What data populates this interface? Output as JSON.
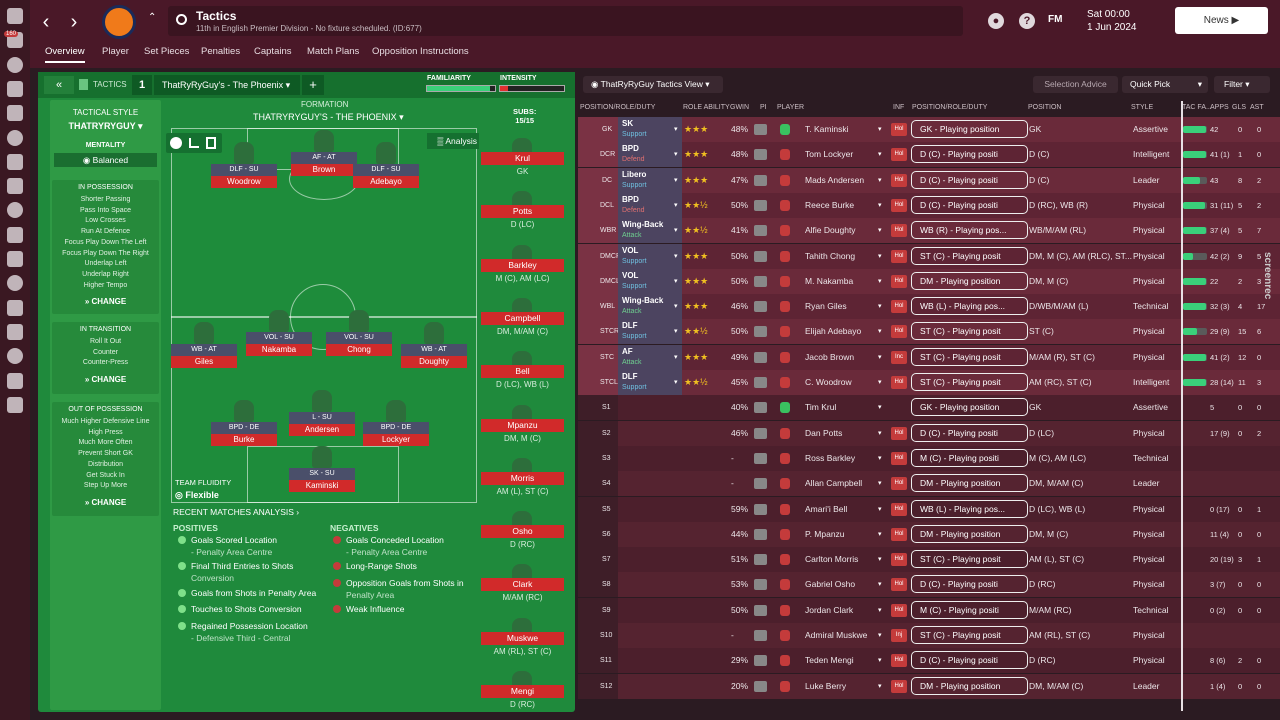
{
  "header": {
    "title": "Tactics",
    "subtitle": "11th in English Premier Division - No fixture scheduled. (ID:677)",
    "fm_label": "FM",
    "date_line1": "Sat 00:00",
    "date_line2": "1 Jun 2024",
    "news_label": "News",
    "tabs": [
      "Overview",
      "Player",
      "Set Pieces",
      "Penalties",
      "Captains",
      "Match Plans",
      "Opposition Instructions"
    ],
    "rail_badge": "160"
  },
  "tactics_bar": {
    "label": "TACTICS",
    "slot": "1",
    "tactic_name": "ThatRyRyGuy's - The Phoenix",
    "familiarity": "FAMILIARITY",
    "intensity": "INTENSITY",
    "familiarity_fill": 0.92,
    "intensity_fill": 0.12
  },
  "style_panel": {
    "header": "TACTICAL STYLE",
    "name": "THATRYRYGUY",
    "mentality_label": "MENTALITY",
    "mentality": "Balanced",
    "in_possession": {
      "title": "IN POSSESSION",
      "items": [
        "Shorter Passing",
        "Pass Into Space",
        "Low Crosses",
        "Run At Defence",
        "Focus Play Down The Left",
        "Focus Play Down The Right",
        "Underlap Left",
        "Underlap Right",
        "Higher Tempo"
      ]
    },
    "in_transition": {
      "title": "IN TRANSITION",
      "items": [
        "Roll It Out",
        "Counter",
        "Counter-Press"
      ]
    },
    "out_of_possession": {
      "title": "OUT OF POSSESSION",
      "items": [
        "Much Higher Defensive Line",
        "High Press",
        "Much More Often",
        "Prevent Short GK",
        "Distribution",
        "Get Stuck In",
        "Step Up More"
      ]
    },
    "change_label": "CHANGE",
    "team_fluidity_label": "TEAM FLUIDITY",
    "team_fluidity": "Flexible"
  },
  "formation": {
    "label": "FORMATION",
    "name": "THATRYRYGUY'S - THE PHOENIX",
    "analysis_label": "Analysis",
    "subs_label": "SUBS:",
    "subs_count": "15/15"
  },
  "pitch_players": [
    {
      "role": "DLF - SU",
      "name": "Woodrow"
    },
    {
      "role": "AF - AT",
      "name": "Brown"
    },
    {
      "role": "DLF - SU",
      "name": "Adebayo"
    },
    {
      "role": "WB - AT",
      "name": "Giles"
    },
    {
      "role": "VOL - SU",
      "name": "Nakamba"
    },
    {
      "role": "VOL - SU",
      "name": "Chong"
    },
    {
      "role": "WB - AT",
      "name": "Doughty"
    },
    {
      "role": "BPD - DE",
      "name": "Burke"
    },
    {
      "role": "L - SU",
      "name": "Andersen"
    },
    {
      "role": "BPD - DE",
      "name": "Lockyer"
    },
    {
      "role": "SK - SU",
      "name": "Kaminski"
    }
  ],
  "subs": [
    {
      "name": "Krul",
      "pos": "GK"
    },
    {
      "name": "Potts",
      "pos": "D (LC)"
    },
    {
      "name": "Barkley",
      "pos": "M (C), AM (LC)"
    },
    {
      "name": "Campbell",
      "pos": "DM, M/AM (C)"
    },
    {
      "name": "Bell",
      "pos": "D (LC), WB (L)"
    },
    {
      "name": "Mpanzu",
      "pos": "DM, M (C)"
    },
    {
      "name": "Morris",
      "pos": "AM (L), ST (C)"
    },
    {
      "name": "Osho",
      "pos": "D (RC)"
    },
    {
      "name": "Clark",
      "pos": "M/AM (RC)"
    },
    {
      "name": "Muskwe",
      "pos": "AM (RL), ST (C)"
    },
    {
      "name": "Mengi",
      "pos": "D (RC)"
    }
  ],
  "analysis": {
    "title": "RECENT MATCHES ANALYSIS",
    "positives_label": "POSITIVES",
    "negatives_label": "NEGATIVES",
    "positives": [
      {
        "text": "Goals Scored Location",
        "sub": "- Penalty Area Centre"
      },
      {
        "text": "Final Third Entries to Shots",
        "sub": "Conversion"
      },
      {
        "text": "Goals from Shots in Penalty Area",
        "sub": ""
      },
      {
        "text": "Touches to Shots Conversion",
        "sub": ""
      },
      {
        "text": "Regained Possession Location",
        "sub": "- Defensive Third - Central"
      }
    ],
    "negatives": [
      {
        "text": "Goals Conceded Location",
        "sub": "- Penalty Area Centre"
      },
      {
        "text": "Long-Range Shots",
        "sub": ""
      },
      {
        "text": "Opposition Goals from Shots in",
        "sub": "Penalty Area"
      },
      {
        "text": "Weak Influence",
        "sub": ""
      }
    ]
  },
  "right": {
    "view_label": "ThatRyRyGuy Tactics View",
    "selection_advice": "Selection Advice",
    "quick_pick": "Quick Pick",
    "filter": "Filter",
    "columns": [
      "POSITION/ROLE/DUTY",
      "ROLE ABILITY",
      "GWIN",
      "PI",
      "PLAYER",
      "INF",
      "POSITION/ROLE/DUTY",
      "POSITION",
      "STYLE",
      "TAC FA...",
      "APPS",
      "GLS",
      "AST"
    ],
    "rows": [
      {
        "pos": "GK",
        "role": "SK",
        "duty": "Support",
        "stars": 3,
        "gwin": "48%",
        "player": "T. Kaminski",
        "inf": "Hol",
        "ddl": "GK - Playing position",
        "position": "GK",
        "style": "Assertive",
        "tac": 0.95,
        "apps": "42",
        "gls": "0",
        "ast": "0"
      },
      {
        "pos": "DCR",
        "role": "BPD",
        "duty": "Defend",
        "stars": 3,
        "gwin": "48%",
        "player": "Tom Lockyer",
        "inf": "Hol",
        "ddl": "D (C) - Playing positi",
        "position": "D (C)",
        "style": "Intelligent",
        "tac": 0.95,
        "apps": "41 (1)",
        "gls": "1",
        "ast": "0"
      },
      {
        "pos": "DC",
        "role": "Libero",
        "duty": "Support",
        "stars": 3,
        "gwin": "47%",
        "player": "Mads Andersen",
        "inf": "Hol",
        "ddl": "D (C) - Playing positi",
        "position": "D (C)",
        "style": "Leader",
        "tac": 0.7,
        "apps": "43",
        "gls": "8",
        "ast": "2"
      },
      {
        "pos": "DCL",
        "role": "BPD",
        "duty": "Defend",
        "stars": 2.5,
        "gwin": "50%",
        "player": "Reece Burke",
        "inf": "Hol",
        "ddl": "D (C) - Playing positi",
        "position": "D (RC), WB (R)",
        "style": "Physical",
        "tac": 0.9,
        "apps": "31 (11)",
        "gls": "5",
        "ast": "2"
      },
      {
        "pos": "WBR",
        "role": "Wing-Back",
        "duty": "Attack",
        "stars": 2.5,
        "gwin": "41%",
        "player": "Alfie Doughty",
        "inf": "Hol",
        "ddl": "WB (R) - Playing pos...",
        "position": "WB/M/AM (RL)",
        "style": "Physical",
        "tac": 0.95,
        "apps": "37 (4)",
        "gls": "5",
        "ast": "7"
      },
      {
        "pos": "DMCR",
        "role": "VOL",
        "duty": "Support",
        "stars": 3,
        "gwin": "50%",
        "player": "Tahith Chong",
        "inf": "Hol",
        "ddl": "ST (C) - Playing posit",
        "position": "DM, M (C), AM (RLC), ST...",
        "style": "Physical",
        "tac": 0.4,
        "apps": "42 (2)",
        "gls": "9",
        "ast": "5"
      },
      {
        "pos": "DMCL",
        "role": "VOL",
        "duty": "Support",
        "stars": 3,
        "gwin": "50%",
        "player": "M. Nakamba",
        "inf": "Hol",
        "ddl": "DM - Playing position",
        "position": "DM, M (C)",
        "style": "Physical",
        "tac": 0.95,
        "apps": "22",
        "gls": "2",
        "ast": "3"
      },
      {
        "pos": "WBL",
        "role": "Wing-Back",
        "duty": "Attack",
        "stars": 3,
        "gwin": "46%",
        "player": "Ryan Giles",
        "inf": "Hol",
        "ddl": "WB (L) - Playing pos...",
        "position": "D/WB/M/AM (L)",
        "style": "Technical",
        "tac": 0.95,
        "apps": "32 (3)",
        "gls": "4",
        "ast": "17"
      },
      {
        "pos": "STCR",
        "role": "DLF",
        "duty": "Support",
        "stars": 2.5,
        "gwin": "50%",
        "player": "Elijah Adebayo",
        "inf": "Hol",
        "ddl": "ST (C) - Playing posit",
        "position": "ST (C)",
        "style": "Physical",
        "tac": 0.6,
        "apps": "29 (9)",
        "gls": "15",
        "ast": "6"
      },
      {
        "pos": "STC",
        "role": "AF",
        "duty": "Attack",
        "stars": 3,
        "gwin": "49%",
        "player": "Jacob Brown",
        "inf": "Inc",
        "ddl": "ST (C) - Playing posit",
        "position": "M/AM (R), ST (C)",
        "style": "Physical",
        "tac": 0.95,
        "apps": "41 (2)",
        "gls": "12",
        "ast": "0"
      },
      {
        "pos": "STCL",
        "role": "DLF",
        "duty": "Support",
        "stars": 2.5,
        "gwin": "45%",
        "player": "C. Woodrow",
        "inf": "Hol",
        "ddl": "ST (C) - Playing posit",
        "position": "AM (RC), ST (C)",
        "style": "Intelligent",
        "tac": 0.95,
        "apps": "28 (14)",
        "gls": "11",
        "ast": "3"
      },
      {
        "pos": "S1",
        "role": "",
        "duty": "",
        "stars": 0,
        "gwin": "40%",
        "player": "Tim Krul",
        "inf": "",
        "ddl": "GK - Playing position",
        "position": "GK",
        "style": "Assertive",
        "tac": 0,
        "apps": "5",
        "gls": "0",
        "ast": "0"
      },
      {
        "pos": "S2",
        "role": "",
        "duty": "",
        "stars": 0,
        "gwin": "46%",
        "player": "Dan Potts",
        "inf": "Hol",
        "ddl": "D (C) - Playing positi",
        "position": "D (LC)",
        "style": "Physical",
        "tac": 0,
        "apps": "17 (9)",
        "gls": "0",
        "ast": "2"
      },
      {
        "pos": "S3",
        "role": "",
        "duty": "",
        "stars": 0,
        "gwin": "-",
        "player": "Ross Barkley",
        "inf": "Hol",
        "ddl": "M (C) - Playing positi",
        "position": "M (C), AM (LC)",
        "style": "Technical",
        "tac": 0,
        "apps": "",
        "gls": "",
        "ast": ""
      },
      {
        "pos": "S4",
        "role": "",
        "duty": "",
        "stars": 0,
        "gwin": "-",
        "player": "Allan Campbell",
        "inf": "Hol",
        "ddl": "DM - Playing position",
        "position": "DM, M/AM (C)",
        "style": "Leader",
        "tac": 0,
        "apps": "",
        "gls": "",
        "ast": ""
      },
      {
        "pos": "S5",
        "role": "",
        "duty": "",
        "stars": 0,
        "gwin": "59%",
        "player": "Amari'i Bell",
        "inf": "Hol",
        "ddl": "WB (L) - Playing pos...",
        "position": "D (LC), WB (L)",
        "style": "Physical",
        "tac": 0,
        "apps": "0 (17)",
        "gls": "0",
        "ast": "1"
      },
      {
        "pos": "S6",
        "role": "",
        "duty": "",
        "stars": 0,
        "gwin": "44%",
        "player": "P. Mpanzu",
        "inf": "Hol",
        "ddl": "DM - Playing position",
        "position": "DM, M (C)",
        "style": "Physical",
        "tac": 0,
        "apps": "11 (4)",
        "gls": "0",
        "ast": "0"
      },
      {
        "pos": "S7",
        "role": "",
        "duty": "",
        "stars": 0,
        "gwin": "51%",
        "player": "Carlton Morris",
        "inf": "Hol",
        "ddl": "ST (C) - Playing posit",
        "position": "AM (L), ST (C)",
        "style": "Physical",
        "tac": 0,
        "apps": "20 (19)",
        "gls": "3",
        "ast": "1"
      },
      {
        "pos": "S8",
        "role": "",
        "duty": "",
        "stars": 0,
        "gwin": "53%",
        "player": "Gabriel Osho",
        "inf": "Hol",
        "ddl": "D (C) - Playing positi",
        "position": "D (RC)",
        "style": "Physical",
        "tac": 0,
        "apps": "3 (7)",
        "gls": "0",
        "ast": "0"
      },
      {
        "pos": "S9",
        "role": "",
        "duty": "",
        "stars": 0,
        "gwin": "50%",
        "player": "Jordan Clark",
        "inf": "Hol",
        "ddl": "M (C) - Playing positi",
        "position": "M/AM (RC)",
        "style": "Technical",
        "tac": 0,
        "apps": "0 (2)",
        "gls": "0",
        "ast": "0"
      },
      {
        "pos": "S10",
        "role": "",
        "duty": "",
        "stars": 0,
        "gwin": "-",
        "player": "Admiral Muskwe",
        "inf": "Inj",
        "ddl": "ST (C) - Playing posit",
        "position": "AM (RL), ST (C)",
        "style": "Physical",
        "tac": 0,
        "apps": "",
        "gls": "",
        "ast": ""
      },
      {
        "pos": "S11",
        "role": "",
        "duty": "",
        "stars": 0,
        "gwin": "29%",
        "player": "Teden Mengi",
        "inf": "Hol",
        "ddl": "D (C) - Playing positi",
        "position": "D (RC)",
        "style": "Physical",
        "tac": 0,
        "apps": "8 (6)",
        "gls": "2",
        "ast": "0"
      },
      {
        "pos": "S12",
        "role": "",
        "duty": "",
        "stars": 0,
        "gwin": "20%",
        "player": "Luke Berry",
        "inf": "Hol",
        "ddl": "DM - Playing position",
        "position": "DM, M/AM (C)",
        "style": "Leader",
        "tac": 0,
        "apps": "1 (4)",
        "gls": "0",
        "ast": "0"
      }
    ],
    "watermark": "screenrec"
  },
  "colors": {
    "header": "#4a1828",
    "green": "#1f8a3c",
    "name_red": "#d12a2a",
    "role_box": "#4c4460",
    "row_a": "#6a2a3a",
    "row_b": "#5e2434"
  }
}
